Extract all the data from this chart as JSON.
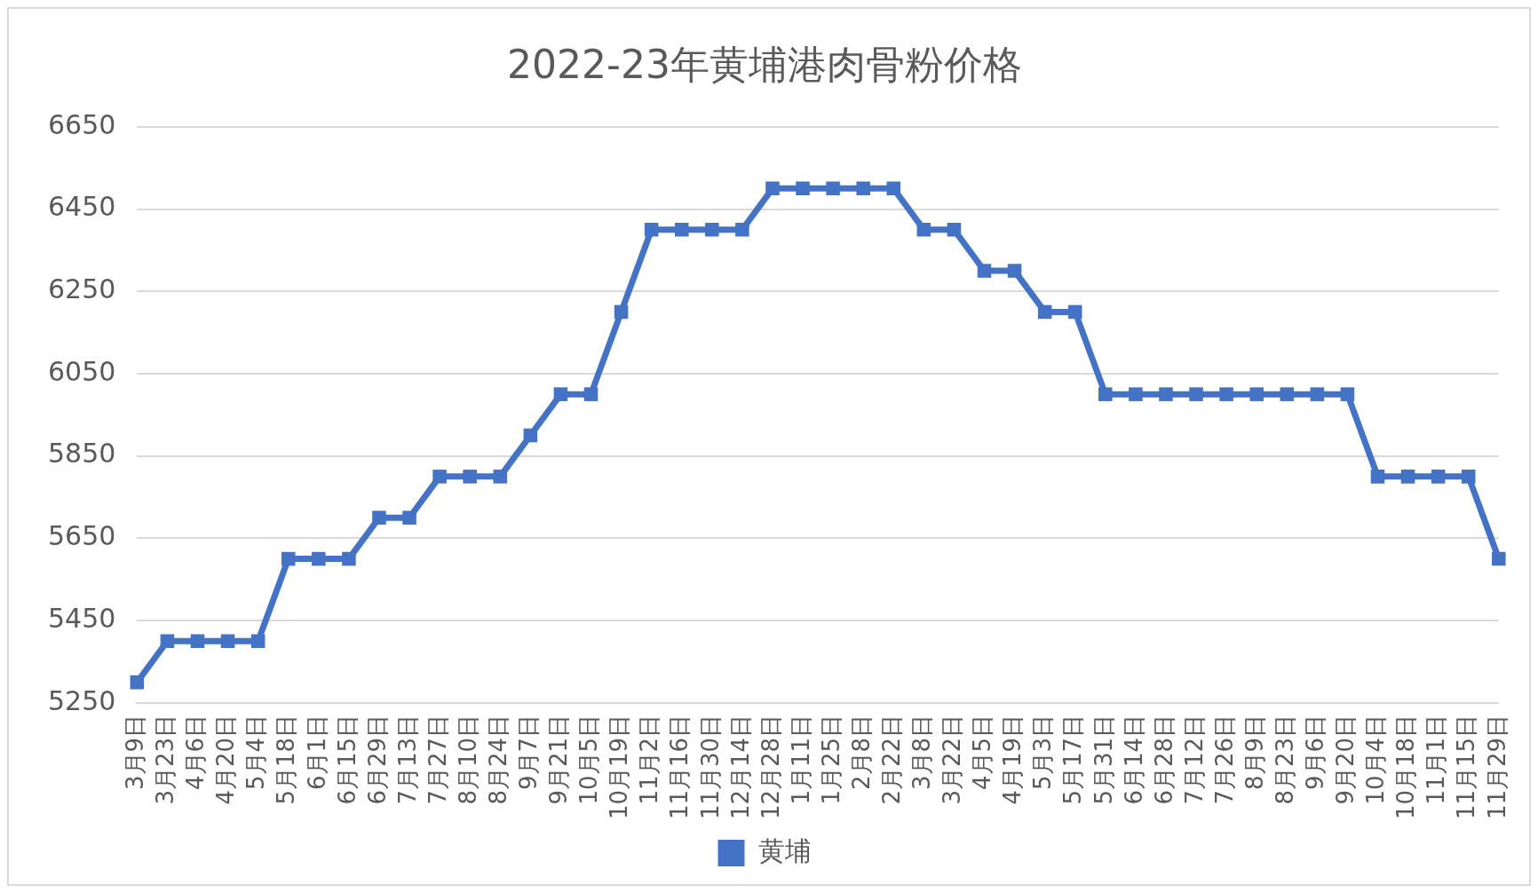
{
  "chart_data": {
    "type": "line",
    "title": "2022-23年黄埔港肉骨粉价格",
    "categories": [
      "3月9日",
      "3月23日",
      "4月6日",
      "4月20日",
      "5月4日",
      "5月18日",
      "6月1日",
      "6月15日",
      "6月29日",
      "7月13日",
      "7月27日",
      "8月10日",
      "8月24日",
      "9月7日",
      "9月21日",
      "10月5日",
      "10月19日",
      "11月2日",
      "11月16日",
      "11月30日",
      "12月14日",
      "12月28日",
      "1月11日",
      "1月25日",
      "2月8日",
      "2月22日",
      "3月8日",
      "3月22日",
      "4月5日",
      "4月19日",
      "5月3日",
      "5月17日",
      "5月31日",
      "6月14日",
      "6月28日",
      "7月12日",
      "7月26日",
      "8月9日",
      "8月23日",
      "9月6日",
      "9月20日",
      "10月4日",
      "10月18日",
      "11月1日",
      "11月15日",
      "11月29日"
    ],
    "series": [
      {
        "name": "黄埔",
        "color": "#4472c4",
        "values": [
          5300,
          5400,
          5400,
          5400,
          5400,
          5600,
          5600,
          5600,
          5700,
          5700,
          5800,
          5800,
          5800,
          5900,
          6000,
          6000,
          6200,
          6400,
          6400,
          6400,
          6400,
          6500,
          6500,
          6500,
          6500,
          6500,
          6400,
          6400,
          6300,
          6300,
          6200,
          6200,
          6000,
          6000,
          6000,
          6000,
          6000,
          6000,
          6000,
          6000,
          6000,
          5800,
          5800,
          5800,
          5800,
          5600
        ]
      }
    ],
    "ylim": [
      5250,
      6650
    ],
    "yticks": [
      5250,
      5450,
      5650,
      5850,
      6050,
      6250,
      6450,
      6650
    ],
    "grid": "y",
    "legend": "bottom",
    "marker": "square",
    "line_style": "solid"
  }
}
